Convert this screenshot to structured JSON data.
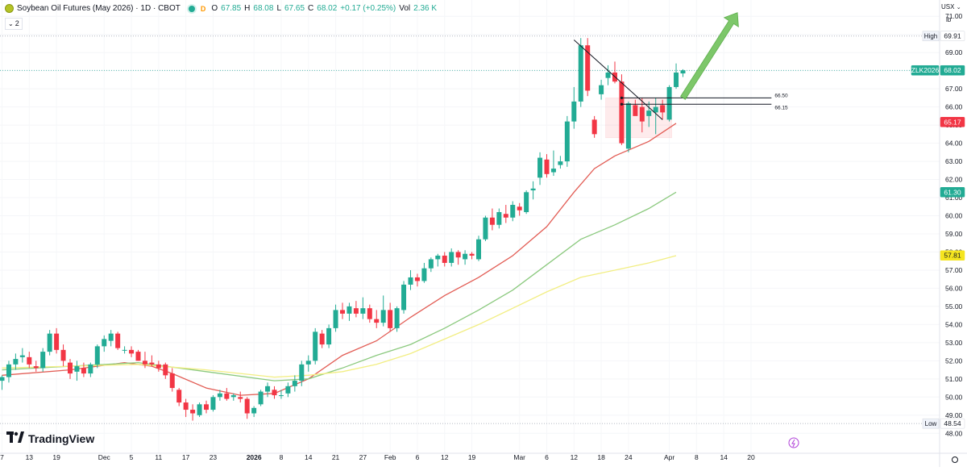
{
  "header": {
    "title": "Soybean Oil Futures (May 2026) · 1D · CBOT",
    "interval_badge": "D",
    "ohlc": [
      {
        "key": "O",
        "value": "67.85"
      },
      {
        "key": "H",
        "value": "68.08"
      },
      {
        "key": "L",
        "value": "67.65"
      },
      {
        "key": "C",
        "value": "68.02"
      }
    ],
    "change": "+0.17 (+0.25%)",
    "vol_label": "Vol",
    "vol_value": "2.36 K",
    "collapsed_count": "2"
  },
  "axis": {
    "currency": "USX",
    "unit": "lb"
  },
  "brand": {
    "logo_text": "TradingView"
  },
  "colors": {
    "up": "#22ab94",
    "down": "#f23645",
    "ma_fast": "#e25c54",
    "ma_mid": "#8bc97e",
    "ma_slow": "#f2ee83",
    "arrow": "#6fc25a"
  },
  "chart_data": {
    "type": "candlestick",
    "title": "Soybean Oil Futures (May 2026)",
    "ylim": [
      46.9,
      71.9
    ],
    "y_ticks": [
      48,
      49,
      50,
      51,
      52,
      53,
      54,
      55,
      56,
      57,
      58,
      59,
      60,
      61,
      62,
      63,
      64,
      65,
      66,
      67,
      68,
      69,
      70,
      71
    ],
    "x_tick_labels": [
      {
        "i": 0,
        "label": "7"
      },
      {
        "i": 4,
        "label": "13"
      },
      {
        "i": 8,
        "label": "19"
      },
      {
        "i": 15,
        "label": "Dec"
      },
      {
        "i": 19,
        "label": "5"
      },
      {
        "i": 23,
        "label": "11"
      },
      {
        "i": 27,
        "label": "17"
      },
      {
        "i": 31,
        "label": "23"
      },
      {
        "i": 37,
        "label": "2026"
      },
      {
        "i": 41,
        "label": "8"
      },
      {
        "i": 45,
        "label": "14"
      },
      {
        "i": 49,
        "label": "21"
      },
      {
        "i": 53,
        "label": "27"
      },
      {
        "i": 57,
        "label": "Feb"
      },
      {
        "i": 61,
        "label": "6"
      },
      {
        "i": 65,
        "label": "12"
      },
      {
        "i": 69,
        "label": "19"
      },
      {
        "i": 76,
        "label": "Mar"
      },
      {
        "i": 80,
        "label": "6"
      },
      {
        "i": 84,
        "label": "12"
      },
      {
        "i": 88,
        "label": "18"
      },
      {
        "i": 92,
        "label": "24"
      },
      {
        "i": 98,
        "label": "Apr"
      },
      {
        "i": 102,
        "label": "8"
      },
      {
        "i": 106,
        "label": "14"
      },
      {
        "i": 110,
        "label": "20"
      }
    ],
    "candles": [
      {
        "o": 50.9,
        "h": 51.2,
        "l": 50.4,
        "c": 51.1
      },
      {
        "o": 51.1,
        "h": 52.0,
        "l": 50.8,
        "c": 51.8
      },
      {
        "o": 51.8,
        "h": 52.4,
        "l": 51.5,
        "c": 52.1
      },
      {
        "o": 52.2,
        "h": 52.7,
        "l": 51.9,
        "c": 52.3
      },
      {
        "o": 52.2,
        "h": 52.5,
        "l": 51.6,
        "c": 51.8
      },
      {
        "o": 51.7,
        "h": 52.0,
        "l": 51.4,
        "c": 51.6
      },
      {
        "o": 51.6,
        "h": 52.7,
        "l": 51.4,
        "c": 52.5
      },
      {
        "o": 52.5,
        "h": 53.7,
        "l": 52.3,
        "c": 53.5
      },
      {
        "o": 53.5,
        "h": 53.8,
        "l": 52.4,
        "c": 52.6
      },
      {
        "o": 52.6,
        "h": 52.9,
        "l": 51.7,
        "c": 52.0
      },
      {
        "o": 51.9,
        "h": 52.1,
        "l": 51.0,
        "c": 51.3
      },
      {
        "o": 51.4,
        "h": 52.0,
        "l": 50.9,
        "c": 51.7
      },
      {
        "o": 51.6,
        "h": 51.9,
        "l": 51.1,
        "c": 51.3
      },
      {
        "o": 51.3,
        "h": 51.9,
        "l": 51.1,
        "c": 51.8
      },
      {
        "o": 51.8,
        "h": 52.9,
        "l": 51.6,
        "c": 52.8
      },
      {
        "o": 52.8,
        "h": 53.4,
        "l": 52.5,
        "c": 53.2
      },
      {
        "o": 53.1,
        "h": 53.7,
        "l": 52.8,
        "c": 53.5
      },
      {
        "o": 53.5,
        "h": 53.6,
        "l": 52.6,
        "c": 52.7
      },
      {
        "o": 52.6,
        "h": 52.8,
        "l": 52.4,
        "c": 52.6
      },
      {
        "o": 52.6,
        "h": 52.8,
        "l": 52.2,
        "c": 52.4
      },
      {
        "o": 52.5,
        "h": 52.6,
        "l": 52.0,
        "c": 52.0
      },
      {
        "o": 52.0,
        "h": 52.5,
        "l": 51.6,
        "c": 51.8
      },
      {
        "o": 51.9,
        "h": 52.3,
        "l": 51.7,
        "c": 51.8
      },
      {
        "o": 51.8,
        "h": 52.0,
        "l": 51.4,
        "c": 51.6
      },
      {
        "o": 51.8,
        "h": 51.9,
        "l": 51.0,
        "c": 51.2
      },
      {
        "o": 51.3,
        "h": 51.6,
        "l": 50.3,
        "c": 50.5
      },
      {
        "o": 50.4,
        "h": 50.5,
        "l": 49.5,
        "c": 49.7
      },
      {
        "o": 49.7,
        "h": 49.9,
        "l": 48.9,
        "c": 49.3
      },
      {
        "o": 49.3,
        "h": 49.6,
        "l": 48.7,
        "c": 49.1
      },
      {
        "o": 49.0,
        "h": 49.7,
        "l": 48.9,
        "c": 49.6
      },
      {
        "o": 49.6,
        "h": 49.8,
        "l": 49.1,
        "c": 49.3
      },
      {
        "o": 49.3,
        "h": 50.1,
        "l": 49.2,
        "c": 50.0
      },
      {
        "o": 50.0,
        "h": 50.4,
        "l": 49.8,
        "c": 50.2
      },
      {
        "o": 50.2,
        "h": 50.5,
        "l": 49.8,
        "c": 49.9
      },
      {
        "o": 50.0,
        "h": 50.2,
        "l": 49.8,
        "c": 50.1
      },
      {
        "o": 50.0,
        "h": 50.3,
        "l": 49.7,
        "c": 49.9
      },
      {
        "o": 49.9,
        "h": 50.0,
        "l": 48.8,
        "c": 49.1
      },
      {
        "o": 49.1,
        "h": 49.5,
        "l": 48.9,
        "c": 49.4
      },
      {
        "o": 49.6,
        "h": 50.4,
        "l": 49.5,
        "c": 50.3
      },
      {
        "o": 50.3,
        "h": 50.8,
        "l": 50.0,
        "c": 50.6
      },
      {
        "o": 50.4,
        "h": 50.6,
        "l": 49.9,
        "c": 50.1
      },
      {
        "o": 50.1,
        "h": 50.4,
        "l": 49.9,
        "c": 50.1
      },
      {
        "o": 50.2,
        "h": 50.8,
        "l": 50.0,
        "c": 50.6
      },
      {
        "o": 50.6,
        "h": 51.2,
        "l": 50.3,
        "c": 50.9
      },
      {
        "o": 50.9,
        "h": 52.0,
        "l": 50.6,
        "c": 51.8
      },
      {
        "o": 51.8,
        "h": 52.3,
        "l": 51.4,
        "c": 52.0
      },
      {
        "o": 52.0,
        "h": 53.8,
        "l": 51.8,
        "c": 53.6
      },
      {
        "o": 53.5,
        "h": 53.7,
        "l": 52.7,
        "c": 52.9
      },
      {
        "o": 52.9,
        "h": 54.0,
        "l": 52.7,
        "c": 53.8
      },
      {
        "o": 53.8,
        "h": 55.1,
        "l": 53.6,
        "c": 54.8
      },
      {
        "o": 54.8,
        "h": 55.2,
        "l": 54.3,
        "c": 54.6
      },
      {
        "o": 54.6,
        "h": 55.2,
        "l": 54.2,
        "c": 55.0
      },
      {
        "o": 54.9,
        "h": 55.3,
        "l": 54.4,
        "c": 54.6
      },
      {
        "o": 54.6,
        "h": 55.5,
        "l": 54.3,
        "c": 54.9
      },
      {
        "o": 54.9,
        "h": 55.1,
        "l": 54.1,
        "c": 54.3
      },
      {
        "o": 54.3,
        "h": 54.8,
        "l": 53.8,
        "c": 54.1
      },
      {
        "o": 54.1,
        "h": 55.6,
        "l": 53.9,
        "c": 54.8
      },
      {
        "o": 54.8,
        "h": 55.2,
        "l": 53.6,
        "c": 53.8
      },
      {
        "o": 53.8,
        "h": 55.0,
        "l": 53.6,
        "c": 54.9
      },
      {
        "o": 54.8,
        "h": 56.4,
        "l": 54.6,
        "c": 56.2
      },
      {
        "o": 56.2,
        "h": 57.0,
        "l": 55.9,
        "c": 56.6
      },
      {
        "o": 56.6,
        "h": 56.8,
        "l": 56.1,
        "c": 56.4
      },
      {
        "o": 56.4,
        "h": 57.4,
        "l": 56.3,
        "c": 57.1
      },
      {
        "o": 57.1,
        "h": 57.7,
        "l": 56.9,
        "c": 57.6
      },
      {
        "o": 57.6,
        "h": 57.9,
        "l": 57.2,
        "c": 57.8
      },
      {
        "o": 57.8,
        "h": 58.0,
        "l": 57.2,
        "c": 57.4
      },
      {
        "o": 57.4,
        "h": 58.2,
        "l": 57.2,
        "c": 58.0
      },
      {
        "o": 58.0,
        "h": 58.1,
        "l": 57.3,
        "c": 57.7
      },
      {
        "o": 57.6,
        "h": 58.1,
        "l": 57.3,
        "c": 57.9
      },
      {
        "o": 57.9,
        "h": 58.0,
        "l": 57.6,
        "c": 57.8
      },
      {
        "o": 57.6,
        "h": 58.9,
        "l": 57.5,
        "c": 58.7
      },
      {
        "o": 58.7,
        "h": 60.0,
        "l": 58.6,
        "c": 59.9
      },
      {
        "o": 59.9,
        "h": 60.4,
        "l": 59.2,
        "c": 59.5
      },
      {
        "o": 59.5,
        "h": 60.4,
        "l": 59.3,
        "c": 60.2
      },
      {
        "o": 60.1,
        "h": 60.6,
        "l": 59.6,
        "c": 59.9
      },
      {
        "o": 59.9,
        "h": 60.8,
        "l": 59.7,
        "c": 60.6
      },
      {
        "o": 60.5,
        "h": 60.7,
        "l": 60.0,
        "c": 60.3
      },
      {
        "o": 60.2,
        "h": 61.4,
        "l": 60.1,
        "c": 61.3
      },
      {
        "o": 61.4,
        "h": 61.9,
        "l": 60.9,
        "c": 61.5
      },
      {
        "o": 62.1,
        "h": 63.5,
        "l": 61.7,
        "c": 63.2
      },
      {
        "o": 63.1,
        "h": 63.4,
        "l": 62.1,
        "c": 62.3
      },
      {
        "o": 62.4,
        "h": 63.6,
        "l": 62.2,
        "c": 62.6
      },
      {
        "o": 62.8,
        "h": 63.3,
        "l": 62.6,
        "c": 63.0
      },
      {
        "o": 63.0,
        "h": 65.5,
        "l": 62.7,
        "c": 65.2
      },
      {
        "o": 65.2,
        "h": 67.1,
        "l": 64.8,
        "c": 66.3
      },
      {
        "o": 66.3,
        "h": 69.8,
        "l": 66.0,
        "c": 69.4
      },
      {
        "o": 69.4,
        "h": 69.8,
        "l": 66.6,
        "c": 66.9
      },
      {
        "o": 65.3,
        "h": 65.5,
        "l": 64.3,
        "c": 64.5
      },
      {
        "o": 66.7,
        "h": 67.5,
        "l": 66.4,
        "c": 67.2
      },
      {
        "o": 67.6,
        "h": 68.3,
        "l": 67.2,
        "c": 67.9
      },
      {
        "o": 67.9,
        "h": 68.5,
        "l": 67.3,
        "c": 67.4
      },
      {
        "o": 67.4,
        "h": 67.8,
        "l": 63.9,
        "c": 64.0
      },
      {
        "o": 63.7,
        "h": 66.3,
        "l": 63.5,
        "c": 66.2
      },
      {
        "o": 66.1,
        "h": 66.4,
        "l": 65.6,
        "c": 65.5
      },
      {
        "o": 66.0,
        "h": 66.5,
        "l": 64.6,
        "c": 65.2
      },
      {
        "o": 65.5,
        "h": 66.3,
        "l": 64.9,
        "c": 65.8
      },
      {
        "o": 65.7,
        "h": 66.5,
        "l": 64.5,
        "c": 66.0
      },
      {
        "o": 66.1,
        "h": 66.4,
        "l": 65.3,
        "c": 65.7
      },
      {
        "o": 65.3,
        "h": 67.2,
        "l": 65.2,
        "c": 67.1
      },
      {
        "o": 67.1,
        "h": 68.4,
        "l": 67.0,
        "c": 67.9
      },
      {
        "o": 67.85,
        "h": 68.08,
        "l": 67.65,
        "c": 68.02
      }
    ],
    "moving_averages": [
      {
        "color": "#e25c54",
        "points": [
          [
            0,
            51.2
          ],
          [
            10,
            51.5
          ],
          [
            18,
            51.9
          ],
          [
            22,
            51.7
          ],
          [
            25,
            51.3
          ],
          [
            30,
            50.5
          ],
          [
            35,
            50.1
          ],
          [
            40,
            50.2
          ],
          [
            45,
            51.0
          ],
          [
            50,
            52.3
          ],
          [
            55,
            53.1
          ],
          [
            60,
            54.4
          ],
          [
            65,
            55.6
          ],
          [
            70,
            56.6
          ],
          [
            75,
            57.8
          ],
          [
            80,
            59.4
          ],
          [
            84,
            61.3
          ],
          [
            87,
            62.6
          ],
          [
            90,
            63.3
          ],
          [
            95,
            64.1
          ],
          [
            99,
            65.1
          ]
        ]
      },
      {
        "color": "#8bc97e",
        "points": [
          [
            0,
            51.5
          ],
          [
            10,
            51.7
          ],
          [
            20,
            51.9
          ],
          [
            30,
            51.4
          ],
          [
            40,
            50.9
          ],
          [
            45,
            51.0
          ],
          [
            50,
            51.6
          ],
          [
            55,
            52.3
          ],
          [
            60,
            52.9
          ],
          [
            65,
            53.8
          ],
          [
            70,
            54.8
          ],
          [
            75,
            55.9
          ],
          [
            80,
            57.3
          ],
          [
            85,
            58.7
          ],
          [
            90,
            59.5
          ],
          [
            95,
            60.4
          ],
          [
            99,
            61.3
          ]
        ]
      },
      {
        "color": "#f2ee83",
        "points": [
          [
            0,
            51.6
          ],
          [
            10,
            51.7
          ],
          [
            20,
            51.8
          ],
          [
            30,
            51.5
          ],
          [
            40,
            51.1
          ],
          [
            45,
            51.2
          ],
          [
            50,
            51.4
          ],
          [
            55,
            51.8
          ],
          [
            60,
            52.4
          ],
          [
            65,
            53.2
          ],
          [
            70,
            54.0
          ],
          [
            75,
            54.9
          ],
          [
            80,
            55.8
          ],
          [
            85,
            56.6
          ],
          [
            90,
            57.0
          ],
          [
            95,
            57.4
          ],
          [
            99,
            57.8
          ]
        ]
      }
    ],
    "horizontal_levels": [
      {
        "label": "High",
        "value": 69.91
      },
      {
        "label": "Low",
        "value": 48.54
      }
    ],
    "price_badges": [
      {
        "text": "69.91",
        "value": 69.91,
        "style": "plain"
      },
      {
        "text": "ZLK2026",
        "value": 68.02,
        "style": "tag-green"
      },
      {
        "text": "68.02",
        "value": 68.02,
        "style": "green"
      },
      {
        "text": "65.17",
        "value": 65.17,
        "style": "red"
      },
      {
        "text": "61.30",
        "value": 61.3,
        "style": "green"
      },
      {
        "text": "57.81",
        "value": 57.81,
        "style": "yellow"
      },
      {
        "text": "48.54",
        "value": 48.54,
        "style": "plain"
      }
    ],
    "annotations": {
      "level_lines": [
        {
          "label": "66.50",
          "value": 66.5,
          "x_from": 91,
          "x_to": 113
        },
        {
          "label": "66.15",
          "value": 66.15,
          "x_from": 91,
          "x_to": 113
        }
      ],
      "trendline": {
        "x1": 84,
        "y1": 69.7,
        "x2": 97,
        "y2": 65.3
      },
      "consolidation_box": {
        "x1": 89,
        "x2": 98,
        "y1": 64.3,
        "y2": 66.5
      },
      "arrow": {
        "x1": 100,
        "y1": 66.5,
        "x2": 108,
        "y2": 71.2
      }
    }
  }
}
